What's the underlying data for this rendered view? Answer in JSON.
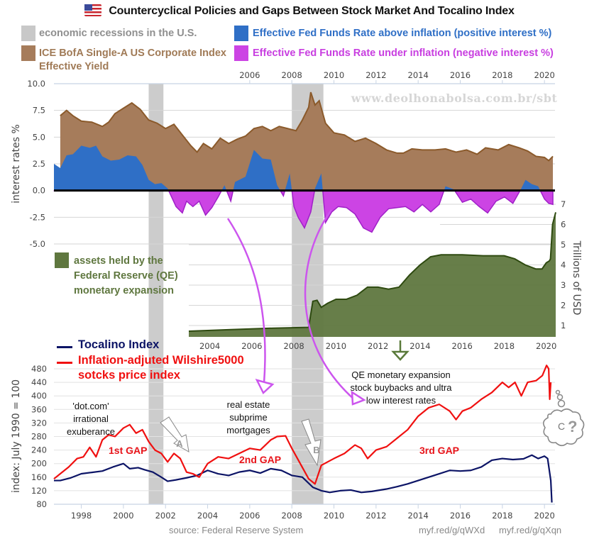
{
  "header": {
    "title": "Countercyclical Policies and Gaps Between Stock Market And Tocalino Index",
    "flag_icon": "us-flag-icon"
  },
  "legend": {
    "recessions": "economic recessions in the U.S.",
    "corporate_line1": "ICE BofA Single-A US Corporate Index",
    "corporate_line2": "Effective Yield",
    "fed_above": "Effective Fed Funds Rate above inflation (positive interest %)",
    "fed_under": "Effective Fed Funds Rate under inflation (negative interest %)",
    "fed_assets_line1": "assets held by the",
    "fed_assets_line2": "Federal Reserve (QE)",
    "fed_assets_line3": "monetary expansion",
    "tocalino": "Tocalino Index",
    "wilshire_line1": "Inflation-adjuted Wilshire5000",
    "wilshire_line2": "sotcks price index"
  },
  "colors": {
    "recession": "#cccccc",
    "corporate": "#a67c5b",
    "corporate_line": "#8b5a2b",
    "fed_above": "#2f6fc6",
    "fed_under": "#cc44e4",
    "fed_under_line": "#a020c8",
    "fed_assets": "#5f773f",
    "fed_assets_line": "#2e4a10",
    "tocalino": "#0c1466",
    "wilshire": "#f01010",
    "arrow_magenta": "#cc55ee",
    "arrow_green": "#5a7a3a",
    "arrow_gray": "#888888"
  },
  "watermark": "www.deolhonabolsa.com.br/sbt",
  "annotations": {
    "dotcom_1": "'dot.com'",
    "dotcom_2": "irrational",
    "dotcom_3": "exuberance",
    "realestate_1": "real estate",
    "realestate_2": "subprime",
    "realestate_3": "mortgages",
    "qe_1": "QE monetary expansion",
    "qe_2": "stock buybacks and ultra",
    "qe_3": "low interest rates",
    "gap1": "1st GAP",
    "gap2": "2nd GAP",
    "gap3": "3rd GAP",
    "arrow_a": "A",
    "arrow_b": "B",
    "bubble_c": "C",
    "bubble_q": "?"
  },
  "footer": {
    "source": "source: Federal Reserve System",
    "link1": "myf.red/g/qWXd",
    "link2": "myf.red/g/qXqn"
  },
  "chart_data": [
    {
      "id": "interest-rates",
      "type": "area",
      "title": "Countercyclical Policies and Gaps Between Stock Market And Tocalino Index",
      "ylabel": "interest rates %",
      "ylim": [
        -5.0,
        10.0
      ],
      "yticks": [
        "10.0",
        "7.5",
        "5.0",
        "2.5",
        "0.0",
        "-2.5",
        "-5.0"
      ],
      "xticks_top": [
        "2006",
        "2008",
        "2010",
        "2012",
        "2014",
        "2016",
        "2018",
        "2020"
      ],
      "xlim": [
        1996.7,
        2020.5
      ],
      "recessions": [
        [
          2001.2,
          2001.9
        ],
        [
          2008.0,
          2009.5
        ]
      ],
      "series": [
        {
          "name": "ICE BofA Single-A US Corporate Index Effective Yield",
          "x": [
            1997.0,
            1997.3,
            1997.6,
            1998.0,
            1998.5,
            1999.0,
            1999.3,
            1999.6,
            2000.0,
            2000.4,
            2000.8,
            2001.2,
            2001.6,
            2002.0,
            2002.4,
            2002.8,
            2003.2,
            2003.5,
            2003.8,
            2004.2,
            2004.6,
            2005.0,
            2005.4,
            2005.8,
            2006.2,
            2006.6,
            2007.0,
            2007.4,
            2007.8,
            2008.2,
            2008.5,
            2008.8,
            2008.9,
            2009.1,
            2009.3,
            2009.6,
            2010.0,
            2010.5,
            2011.0,
            2011.5,
            2012.0,
            2012.5,
            2013.0,
            2013.3,
            2013.7,
            2014.2,
            2014.8,
            2015.3,
            2015.8,
            2016.3,
            2016.8,
            2017.2,
            2017.8,
            2018.3,
            2018.8,
            2019.2,
            2019.6,
            2020.0,
            2020.2,
            2020.4
          ],
          "values": [
            7.0,
            7.5,
            7.0,
            6.5,
            6.4,
            6.0,
            6.4,
            7.2,
            7.7,
            8.2,
            7.6,
            6.6,
            6.3,
            5.8,
            6.2,
            5.2,
            4.2,
            3.6,
            4.4,
            3.9,
            4.9,
            4.4,
            4.8,
            5.1,
            5.8,
            6.0,
            5.6,
            6.0,
            5.8,
            5.6,
            6.6,
            7.8,
            9.2,
            8.0,
            8.4,
            6.3,
            5.4,
            5.2,
            4.6,
            4.9,
            4.4,
            3.8,
            3.5,
            3.5,
            3.9,
            3.8,
            3.8,
            3.9,
            3.6,
            3.8,
            3.4,
            4.0,
            3.8,
            4.3,
            4.0,
            3.7,
            3.2,
            3.1,
            2.8,
            3.2
          ]
        },
        {
          "name": "Effective Fed Funds Rate real (above / under inflation)",
          "x": [
            1996.7,
            1997.0,
            1997.3,
            1997.6,
            1998.0,
            1998.4,
            1998.7,
            1999.0,
            1999.4,
            1999.8,
            2000.2,
            2000.6,
            2000.9,
            2001.2,
            2001.5,
            2001.8,
            2002.1,
            2002.5,
            2002.8,
            2003.0,
            2003.3,
            2003.6,
            2003.9,
            2004.2,
            2004.5,
            2004.8,
            2005.1,
            2005.3,
            2005.5,
            2005.8,
            2006.2,
            2006.6,
            2007.0,
            2007.3,
            2007.6,
            2007.9,
            2008.1,
            2008.3,
            2008.6,
            2008.9,
            2009.1,
            2009.4,
            2009.6,
            2009.9,
            2010.2,
            2010.6,
            2011.0,
            2011.4,
            2011.8,
            2012.2,
            2012.6,
            2013.0,
            2013.4,
            2013.8,
            2014.2,
            2014.6,
            2015.0,
            2015.3,
            2015.7,
            2016.1,
            2016.5,
            2016.9,
            2017.3,
            2017.7,
            2018.1,
            2018.5,
            2018.9,
            2019.1,
            2019.4,
            2019.7,
            2020.0,
            2020.2,
            2020.4
          ],
          "values": [
            2.5,
            2.1,
            3.3,
            3.4,
            4.2,
            4.0,
            4.2,
            3.2,
            2.8,
            2.9,
            3.3,
            3.2,
            2.4,
            1.0,
            0.6,
            0.7,
            0.2,
            -1.5,
            -2.1,
            -1.0,
            -1.5,
            -1.0,
            -2.3,
            -1.6,
            -0.6,
            0.5,
            -1.0,
            0.8,
            1.0,
            1.3,
            3.8,
            3.0,
            2.9,
            0.5,
            -0.5,
            1.6,
            -1.5,
            -2.5,
            -3.5,
            -2.0,
            0.2,
            1.6,
            -3.0,
            -2.0,
            -1.5,
            -1.6,
            -2.2,
            -3.5,
            -3.9,
            -2.5,
            -1.7,
            -1.6,
            -1.5,
            -2.0,
            -1.3,
            -2.0,
            -1.3,
            0.4,
            0.1,
            -1.1,
            -0.8,
            -1.5,
            -2.1,
            -1.0,
            -0.6,
            -1.2,
            0.2,
            1.0,
            0.6,
            0.4,
            -0.8,
            -1.2,
            -1.3
          ]
        }
      ]
    },
    {
      "id": "fed-assets",
      "type": "area",
      "ylabel": "Trillions of USD",
      "ylim": [
        0.4,
        7
      ],
      "yticks": [
        "7",
        "6",
        "5",
        "4",
        "3",
        "2",
        "1"
      ],
      "xticks": [
        "2004",
        "2006",
        "2008",
        "2010",
        "2012",
        "2014",
        "2016",
        "2018",
        "2020"
      ],
      "xlim": [
        2003.0,
        2020.45
      ],
      "series": [
        {
          "name": "assets held by the Federal Reserve (QE) monetary expansion",
          "x": [
            2003.0,
            2005.0,
            2007.0,
            2008.3,
            2008.7,
            2008.9,
            2009.1,
            2009.3,
            2009.6,
            2010.0,
            2010.5,
            2011.0,
            2011.5,
            2012.0,
            2012.5,
            2013.0,
            2013.5,
            2014.0,
            2014.5,
            2015.0,
            2016.0,
            2017.0,
            2018.0,
            2018.5,
            2019.0,
            2019.5,
            2019.8,
            2020.0,
            2020.15,
            2020.2,
            2020.3,
            2020.45
          ],
          "values": [
            0.72,
            0.8,
            0.87,
            0.9,
            0.91,
            2.2,
            2.25,
            1.9,
            2.1,
            2.3,
            2.3,
            2.5,
            2.9,
            2.9,
            2.8,
            2.9,
            3.5,
            4.0,
            4.4,
            4.5,
            4.5,
            4.45,
            4.45,
            4.3,
            4.0,
            3.8,
            3.8,
            4.1,
            4.2,
            4.3,
            6.0,
            6.6
          ]
        }
      ]
    },
    {
      "id": "stock-index",
      "type": "line",
      "ylabel": "index:  July 1990 = 100",
      "ylim": [
        80,
        480
      ],
      "yticks": [
        "480",
        "440",
        "400",
        "360",
        "320",
        "280",
        "240",
        "200",
        "160",
        "120",
        "80"
      ],
      "xticks": [
        "1998",
        "2000",
        "2002",
        "2004",
        "2006",
        "2008",
        "2010",
        "2012",
        "2014",
        "2016",
        "2018",
        "2020"
      ],
      "xlim": [
        1996.7,
        2020.5
      ],
      "series": [
        {
          "name": "Tocalino Index",
          "x": [
            1996.7,
            1997.0,
            1997.5,
            1998.0,
            1998.5,
            1999.0,
            1999.5,
            2000.0,
            2000.3,
            2000.7,
            2001.0,
            2001.4,
            2001.8,
            2002.1,
            2002.5,
            2003.0,
            2003.5,
            2004.0,
            2004.5,
            2005.0,
            2005.5,
            2006.0,
            2006.5,
            2007.0,
            2007.5,
            2008.0,
            2008.5,
            2009.0,
            2009.4,
            2009.8,
            2010.3,
            2010.8,
            2011.3,
            2011.8,
            2012.5,
            2013.0,
            2013.5,
            2014.0,
            2014.5,
            2015.0,
            2015.5,
            2016.0,
            2016.5,
            2017.0,
            2017.5,
            2018.0,
            2018.5,
            2019.0,
            2019.4,
            2019.7,
            2020.0,
            2020.15,
            2020.3,
            2020.35
          ],
          "values": [
            150,
            150,
            158,
            170,
            174,
            178,
            190,
            200,
            185,
            188,
            182,
            175,
            160,
            148,
            152,
            158,
            165,
            180,
            170,
            165,
            175,
            180,
            172,
            185,
            180,
            165,
            160,
            130,
            120,
            115,
            120,
            122,
            115,
            118,
            125,
            132,
            140,
            150,
            160,
            170,
            180,
            178,
            180,
            190,
            210,
            215,
            212,
            214,
            225,
            215,
            222,
            215,
            150,
            85
          ]
        },
        {
          "name": "Inflation-adjuted Wilshire5000 sotcks price index",
          "x": [
            1996.7,
            1997.0,
            1997.4,
            1997.8,
            1998.1,
            1998.4,
            1998.7,
            1999.0,
            1999.3,
            1999.6,
            2000.0,
            2000.3,
            2000.6,
            2000.9,
            2001.2,
            2001.5,
            2001.8,
            2002.1,
            2002.4,
            2002.7,
            2003.0,
            2003.3,
            2003.6,
            2004.0,
            2004.5,
            2005.0,
            2005.5,
            2006.0,
            2006.5,
            2007.0,
            2007.3,
            2007.7,
            2008.0,
            2008.4,
            2008.8,
            2009.1,
            2009.4,
            2009.7,
            2010.0,
            2010.5,
            2011.0,
            2011.3,
            2011.6,
            2012.0,
            2012.5,
            2013.0,
            2013.5,
            2014.0,
            2014.5,
            2015.0,
            2015.5,
            2015.8,
            2016.1,
            2016.5,
            2017.0,
            2017.5,
            2018.0,
            2018.3,
            2018.6,
            2018.9,
            2019.2,
            2019.6,
            2019.9,
            2020.1,
            2020.2,
            2020.25,
            2020.3
          ],
          "values": [
            155,
            170,
            190,
            215,
            220,
            248,
            220,
            270,
            285,
            280,
            305,
            315,
            290,
            300,
            265,
            240,
            230,
            205,
            230,
            215,
            175,
            170,
            160,
            200,
            220,
            215,
            230,
            245,
            240,
            270,
            280,
            282,
            245,
            200,
            155,
            140,
            195,
            205,
            215,
            230,
            255,
            245,
            215,
            240,
            250,
            275,
            300,
            340,
            365,
            375,
            355,
            330,
            355,
            365,
            390,
            410,
            440,
            425,
            440,
            400,
            440,
            445,
            460,
            490,
            480,
            390,
            440
          ]
        }
      ]
    }
  ]
}
